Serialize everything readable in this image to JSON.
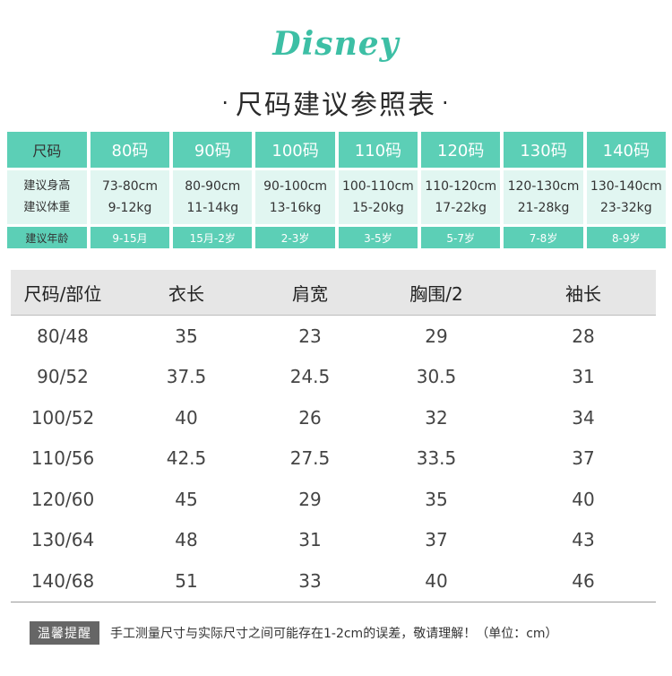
{
  "brand": {
    "logo_text": "Disney"
  },
  "page_title": "尺码建议参照表",
  "title_dot": "·",
  "size_chart": {
    "header_label": "尺码",
    "sizes": [
      "80码",
      "90码",
      "100码",
      "110码",
      "120码",
      "130码",
      "140码"
    ],
    "height_label": "建议身高",
    "weight_label": "建议体重",
    "heights": [
      "73-80cm",
      "80-90cm",
      "90-100cm",
      "100-110cm",
      "110-120cm",
      "120-130cm",
      "130-140cm"
    ],
    "weights": [
      "9-12kg",
      "11-14kg",
      "13-16kg",
      "15-20kg",
      "17-22kg",
      "21-28kg",
      "23-32kg"
    ],
    "age_label": "建议年龄",
    "ages": [
      "9-15月",
      "15月-2岁",
      "2-3岁",
      "3-5岁",
      "5-7岁",
      "7-8岁",
      "8-9岁"
    ]
  },
  "measure_table": {
    "headers": [
      "尺码/部位",
      "衣长",
      "肩宽",
      "胸围/2",
      "袖长"
    ],
    "rows": [
      [
        "80/48",
        "35",
        "23",
        "29",
        "28"
      ],
      [
        "90/52",
        "37.5",
        "24.5",
        "30.5",
        "31"
      ],
      [
        "100/52",
        "40",
        "26",
        "32",
        "34"
      ],
      [
        "110/56",
        "42.5",
        "27.5",
        "33.5",
        "37"
      ],
      [
        "120/60",
        "45",
        "29",
        "35",
        "40"
      ],
      [
        "130/64",
        "48",
        "31",
        "37",
        "43"
      ],
      [
        "140/68",
        "51",
        "33",
        "40",
        "46"
      ]
    ]
  },
  "footer": {
    "badge": "温馨提醒",
    "text": "手工测量尺寸与实际尺寸之间可能存在1-2cm的误差，敬请理解！（单位：cm）"
  }
}
